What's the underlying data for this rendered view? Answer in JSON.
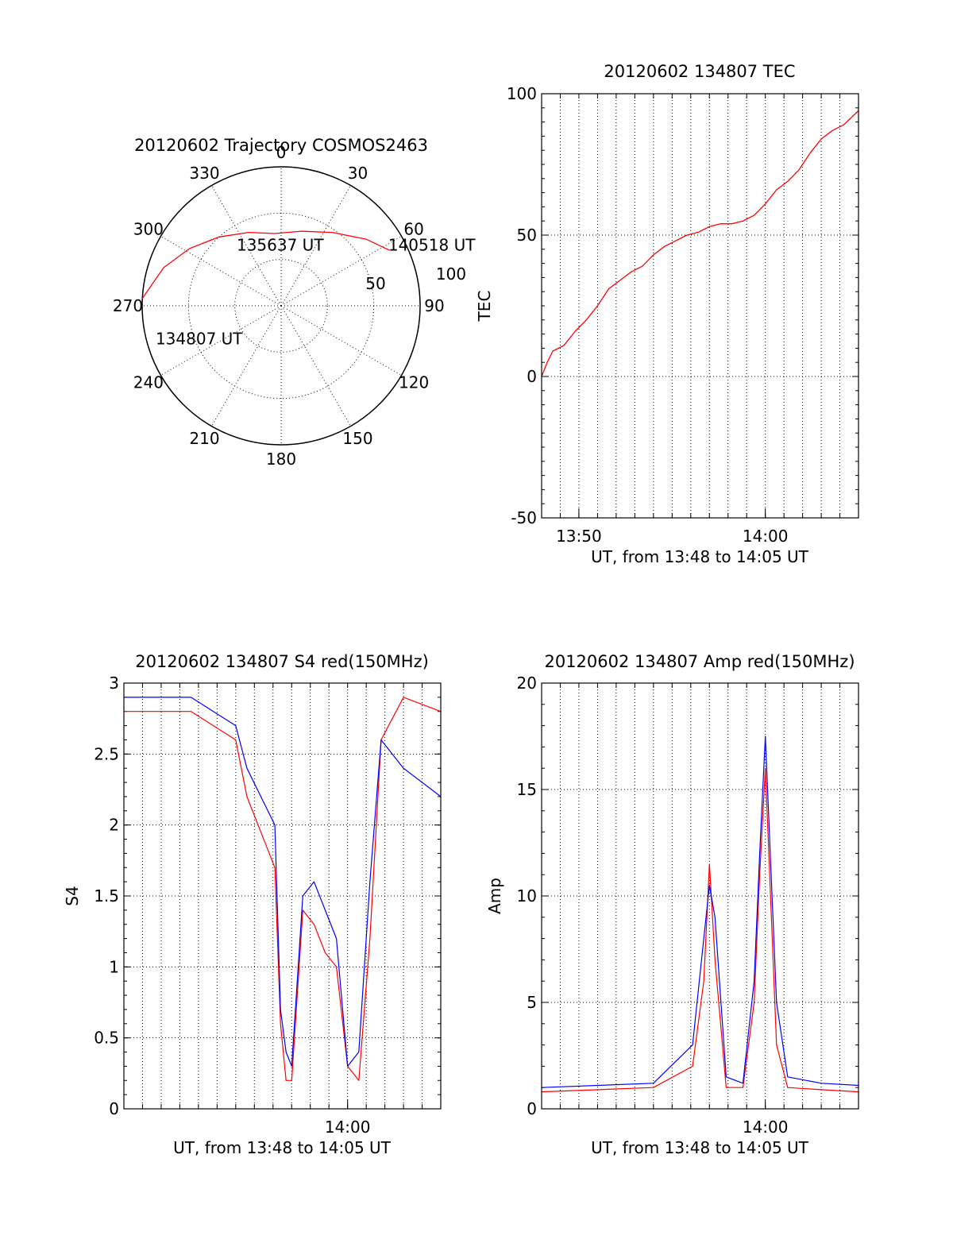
{
  "chart_data": [
    {
      "type": "polar",
      "title": "20120602 Trajectory COSMOS2463",
      "angle_ticks": [
        "0",
        "30",
        "60",
        "90",
        "120",
        "150",
        "180",
        "210",
        "240",
        "270",
        "300",
        "330"
      ],
      "radius_tick_labels": [
        "50",
        "100"
      ],
      "trajectory": {
        "color": "#ff0000",
        "points": [
          {
            "az": 273,
            "el": 0
          },
          {
            "az": 288,
            "el": 10
          },
          {
            "az": 302,
            "el": 20
          },
          {
            "az": 318,
            "el": 30
          },
          {
            "az": 336,
            "el": 38
          },
          {
            "az": 355,
            "el": 43
          },
          {
            "az": 15,
            "el": 40
          },
          {
            "az": 35,
            "el": 32
          },
          {
            "az": 52,
            "el": 20
          },
          {
            "az": 63,
            "el": 11
          }
        ]
      },
      "annotations": [
        {
          "text": "140518 UT",
          "az": 63,
          "el": 11
        },
        {
          "text": "135637 UT",
          "az": 342,
          "el": 48
        },
        {
          "text": "134807 UT",
          "az": 262,
          "el": 10
        }
      ]
    },
    {
      "type": "line",
      "title": "20120602 134807 TEC",
      "xlabel": "UT, from 13:48 to 14:05 UT",
      "ylabel": "TEC",
      "xlim": [
        13.8,
        14.0833
      ],
      "ylim": [
        -50,
        100
      ],
      "yticks": [
        "-50",
        "0",
        "50",
        "100"
      ],
      "xticks": [
        {
          "v": 13.8333,
          "label": "13:50"
        },
        {
          "v": 14.0,
          "label": "14:00"
        }
      ],
      "series": [
        {
          "color": "#ff0000",
          "x": [
            13.8,
            13.805,
            13.81,
            13.82,
            13.83,
            13.84,
            13.85,
            13.86,
            13.87,
            13.88,
            13.89,
            13.9,
            13.91,
            13.92,
            13.93,
            13.94,
            13.95,
            13.96,
            13.97,
            13.98,
            13.99,
            14.0,
            14.01,
            14.02,
            14.03,
            14.04,
            14.05,
            14.06,
            14.07,
            14.0833
          ],
          "y": [
            0,
            5,
            9,
            11,
            16,
            20,
            25,
            31,
            34,
            37,
            39,
            43,
            46,
            48,
            50,
            51,
            53,
            54,
            54,
            55,
            57,
            61,
            66,
            69,
            73,
            79,
            84,
            87,
            89,
            94
          ]
        }
      ]
    },
    {
      "type": "line",
      "title": "20120602 134807 S4 red(150MHz)",
      "xlabel": "UT, from 13:48 to 14:05 UT",
      "ylabel": "S4",
      "xlim": [
        13.8,
        14.0833
      ],
      "ylim": [
        0,
        3
      ],
      "yticks": [
        "0",
        "0.5",
        "1",
        "1.5",
        "2",
        "2.5",
        "3"
      ],
      "xticks": [
        {
          "v": 14.0,
          "label": "14:00"
        }
      ],
      "series": [
        {
          "color": "#ff0000",
          "x": [
            13.8,
            13.86,
            13.9,
            13.91,
            13.935,
            13.94,
            13.945,
            13.95,
            13.96,
            13.97,
            13.98,
            13.99,
            14.0,
            14.01,
            14.02,
            14.03,
            14.05,
            14.0833
          ],
          "y": [
            2.8,
            2.8,
            2.6,
            2.2,
            1.7,
            0.6,
            0.2,
            0.2,
            1.4,
            1.3,
            1.1,
            1.0,
            0.3,
            0.2,
            1.2,
            2.6,
            2.9,
            2.8
          ]
        },
        {
          "color": "#0000ff",
          "x": [
            13.8,
            13.86,
            13.9,
            13.91,
            13.935,
            13.94,
            13.945,
            13.95,
            13.96,
            13.97,
            13.98,
            13.99,
            14.0,
            14.01,
            14.02,
            14.03,
            14.05,
            14.0833
          ],
          "y": [
            2.9,
            2.9,
            2.7,
            2.4,
            2.0,
            0.7,
            0.4,
            0.3,
            1.5,
            1.6,
            1.4,
            1.2,
            0.3,
            0.4,
            1.6,
            2.6,
            2.4,
            2.2
          ]
        }
      ]
    },
    {
      "type": "line",
      "title": "20120602 134807 Amp red(150MHz)",
      "xlabel": "UT, from 13:48 to 14:05 UT",
      "ylabel": "Amp",
      "xlim": [
        13.8,
        14.0833
      ],
      "ylim": [
        0,
        20
      ],
      "yticks": [
        "0",
        "5",
        "10",
        "15",
        "20"
      ],
      "xticks": [
        {
          "v": 14.0,
          "label": "14:00"
        }
      ],
      "series": [
        {
          "color": "#ff0000",
          "x": [
            13.8,
            13.9,
            13.935,
            13.945,
            13.95,
            13.955,
            13.965,
            13.98,
            13.99,
            13.995,
            14.0,
            14.01,
            14.02,
            14.05,
            14.0833
          ],
          "y": [
            0.8,
            1.0,
            2.0,
            6.0,
            11.5,
            7.0,
            1.0,
            1.0,
            5.0,
            11.0,
            16.0,
            3.0,
            1.0,
            0.9,
            0.8
          ]
        },
        {
          "color": "#0000ff",
          "x": [
            13.8,
            13.9,
            13.935,
            13.945,
            13.95,
            13.955,
            13.965,
            13.98,
            13.99,
            13.995,
            14.0,
            14.01,
            14.02,
            14.05,
            14.0833
          ],
          "y": [
            1.0,
            1.2,
            3.0,
            8.0,
            10.5,
            9.0,
            1.5,
            1.2,
            6.0,
            12.0,
            17.5,
            5.0,
            1.5,
            1.2,
            1.1
          ]
        }
      ]
    }
  ]
}
